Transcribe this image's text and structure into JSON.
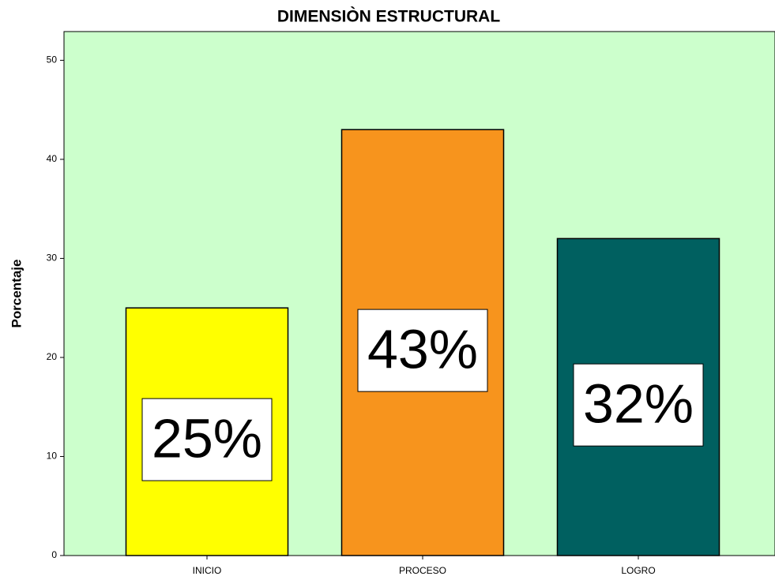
{
  "chart_data": {
    "type": "bar",
    "title": "DIMENSIÒN ESTRUCTURAL",
    "y_label": "Porcentaje",
    "categories": [
      "INICIO",
      "PROCESO",
      "LOGRO"
    ],
    "values": [
      25,
      43,
      32
    ],
    "value_labels": [
      "25%",
      "43%",
      "32%"
    ],
    "colors": [
      "#ffff00",
      "#f7941d",
      "#006060"
    ],
    "background": "#ccffcc",
    "ylim": [
      0,
      52.9
    ],
    "yticks": [
      0,
      10,
      20,
      30,
      40,
      50
    ],
    "grid": false
  }
}
